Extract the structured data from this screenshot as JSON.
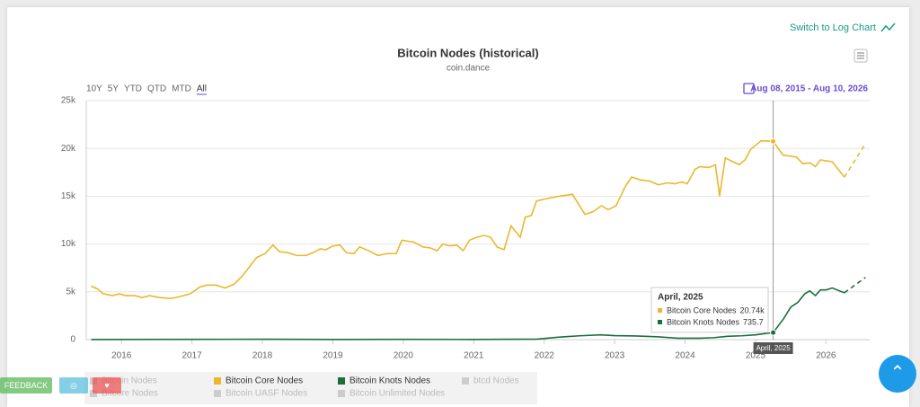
{
  "chart_data": {
    "type": "line",
    "title": "Bitcoin Nodes (historical)",
    "subtitle": "coin.dance",
    "log_switch": "Switch to Log Chart",
    "range_buttons": [
      "10Y",
      "5Y",
      "YTD",
      "QTD",
      "MTD",
      "All"
    ],
    "active_range": 5,
    "date_range": "Aug 08, 2015 - Aug 10, 2026",
    "xlim": [
      2015.5,
      2026.62
    ],
    "xticks": [
      2016,
      2017,
      2018,
      2019,
      2020,
      2021,
      2022,
      2023,
      2024,
      2025,
      2026
    ],
    "ylim": [
      0,
      25000
    ],
    "yticks": [
      0,
      {
        "value": 5000,
        "label": "5k"
      },
      {
        "value": 10000,
        "label": "10k"
      },
      {
        "value": 15000,
        "label": "15k"
      },
      {
        "value": 20000,
        "label": "20k"
      },
      {
        "value": 25000,
        "label": "25k"
      }
    ],
    "grid": true,
    "projection_from": 2026.3,
    "series": [
      {
        "name": "Bitcoin Core Nodes",
        "color": "#ebb82d",
        "x": [
          2015.57,
          2015.66,
          2015.74,
          2015.87,
          2015.97,
          2016.06,
          2016.19,
          2016.29,
          2016.4,
          2016.54,
          2016.7,
          2016.83,
          2016.98,
          2017.11,
          2017.21,
          2017.34,
          2017.47,
          2017.6,
          2017.72,
          2017.92,
          2018.04,
          2018.15,
          2018.24,
          2018.36,
          2018.49,
          2018.62,
          2018.72,
          2018.82,
          2018.9,
          2019.0,
          2019.1,
          2019.19,
          2019.3,
          2019.38,
          2019.51,
          2019.64,
          2019.77,
          2019.9,
          2019.98,
          2020.15,
          2020.28,
          2020.38,
          2020.48,
          2020.56,
          2020.66,
          2020.76,
          2020.85,
          2020.94,
          2021.04,
          2021.15,
          2021.24,
          2021.33,
          2021.43,
          2021.53,
          2021.66,
          2021.73,
          2021.82,
          2021.89,
          2022.07,
          2022.22,
          2022.4,
          2022.58,
          2022.7,
          2022.81,
          2022.91,
          2023.02,
          2023.15,
          2023.24,
          2023.37,
          2023.49,
          2023.62,
          2023.75,
          2023.85,
          2023.96,
          2024.03,
          2024.14,
          2024.21,
          2024.34,
          2024.43,
          2024.49,
          2024.57,
          2024.68,
          2024.77,
          2024.85,
          2024.93,
          2025.08,
          2025.25,
          2025.39,
          2025.58,
          2025.67,
          2025.77,
          2025.85,
          2025.92,
          2026.09,
          2026.26,
          2026.56
        ],
        "values": [
          5600,
          5300,
          4800,
          4600,
          4800,
          4600,
          4600,
          4400,
          4600,
          4400,
          4300,
          4500,
          4800,
          5500,
          5700,
          5700,
          5400,
          5800,
          6700,
          8600,
          9000,
          9900,
          9200,
          9100,
          8800,
          8800,
          9100,
          9500,
          9400,
          9800,
          9900,
          9100,
          9000,
          9700,
          9300,
          8800,
          9000,
          9000,
          10400,
          10200,
          9700,
          9600,
          9300,
          10000,
          9800,
          9900,
          9300,
          10400,
          10700,
          10900,
          10700,
          9700,
          9400,
          11900,
          10700,
          12800,
          13000,
          14500,
          14800,
          15000,
          15200,
          13100,
          13400,
          14000,
          13600,
          14000,
          16000,
          17000,
          16700,
          16600,
          16200,
          16400,
          16300,
          16500,
          16300,
          17800,
          18100,
          18000,
          18300,
          15000,
          19000,
          18600,
          18300,
          18800,
          19900,
          20800,
          20740,
          19300,
          19100,
          18400,
          18500,
          18100,
          18800,
          18600,
          17000,
          20500
        ]
      },
      {
        "name": "Bitcoin Knots Nodes",
        "color": "#1b6e3c",
        "x": [
          2015.57,
          2017.0,
          2018.0,
          2019.0,
          2020.0,
          2021.0,
          2021.9,
          2022.2,
          2022.5,
          2022.8,
          2023.0,
          2023.3,
          2023.6,
          2023.9,
          2024.2,
          2024.4,
          2024.6,
          2024.8,
          2025.0,
          2025.25,
          2025.4,
          2025.5,
          2025.6,
          2025.7,
          2025.77,
          2025.85,
          2025.92,
          2026.0,
          2026.09,
          2026.26,
          2026.56
        ],
        "values": [
          10,
          30,
          40,
          20,
          30,
          20,
          50,
          250,
          400,
          500,
          420,
          380,
          300,
          150,
          150,
          200,
          350,
          400,
          500,
          735.7,
          2200,
          3400,
          3900,
          4800,
          5100,
          4600,
          5200,
          5200,
          5400,
          4900,
          6500
        ]
      }
    ],
    "hidden_series": [
      "Bitcoin Nodes",
      "btcd Nodes",
      "Bitcore Nodes",
      "Bitcoin UASF Nodes",
      "Bitcoin Unlimited Nodes"
    ],
    "tooltip": {
      "title": "April, 2025",
      "x": 2025.25,
      "points": [
        86,
        19
      ],
      "labels": [
        "20.74k",
        "735.7"
      ]
    },
    "feedback": "FEEDBACK"
  }
}
